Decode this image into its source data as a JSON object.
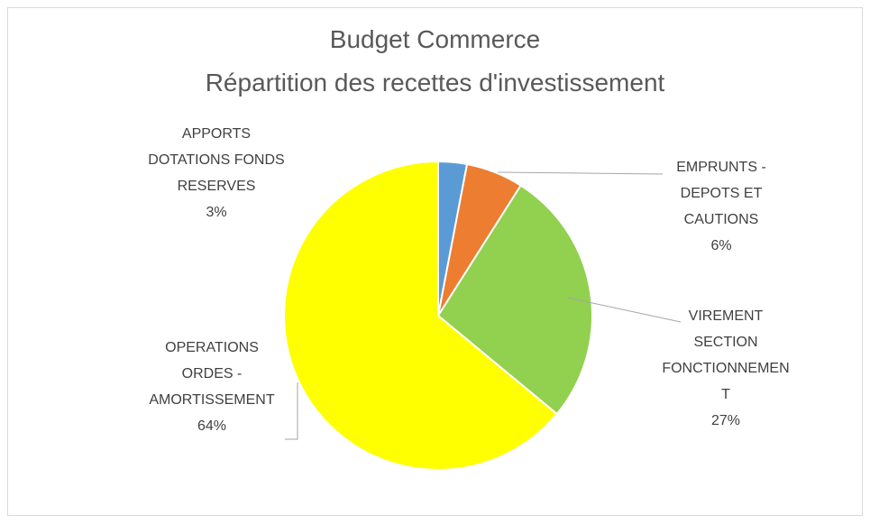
{
  "chart_data": {
    "type": "pie",
    "title": "Budget Commerce",
    "subtitle": "Répartition des recettes d'investissement",
    "categories": [
      "APPORTS DOTATIONS FONDS RESERVES",
      "EMPRUNTS - DEPOTS ET CAUTIONS",
      "VIREMENT SECTION FONCTIONNEMENT",
      "OPERATIONS ORDES - AMORTISSEMENT"
    ],
    "values": [
      3,
      6,
      27,
      64
    ],
    "value_labels": [
      "3%",
      "6%",
      "27%",
      "64%"
    ],
    "colors": [
      "#5b9bd5",
      "#ed7d31",
      "#92d050",
      "#ffff00"
    ]
  }
}
